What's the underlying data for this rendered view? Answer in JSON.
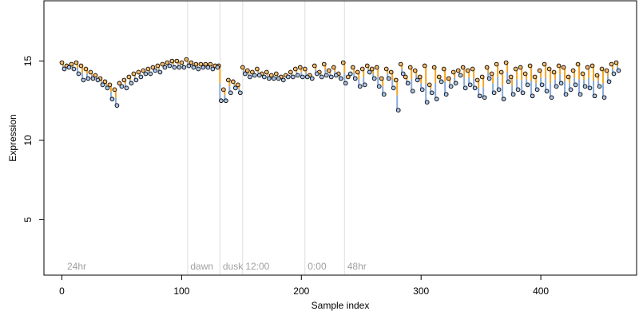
{
  "chart_data": {
    "type": "scatter",
    "title": "",
    "xlabel": "Sample index",
    "ylabel": "Expression",
    "xlim": [
      -15,
      480
    ],
    "ylim": [
      1.5,
      18.8
    ],
    "x_ticks": [
      0,
      100,
      200,
      300,
      400
    ],
    "y_ticks": [
      5,
      10,
      15
    ],
    "grid": false,
    "legend": "none",
    "colors": {
      "orange": "#f7b96a",
      "blue": "#a9c3e8",
      "point_edge": "#000000",
      "orange_line": "#f5a623",
      "blue_line": "#8aabdc",
      "gray_line": "#aaaaaa",
      "vline": "#dddddd",
      "annotation": "#a0a0a0"
    },
    "vlines": [
      105,
      132,
      151,
      203,
      236
    ],
    "annotations": [
      {
        "text": "24hr",
        "x": 3
      },
      {
        "text": "dawn",
        "x": 106
      },
      {
        "text": "dusk",
        "x": 133
      },
      {
        "text": "12:00",
        "x": 152
      },
      {
        "text": "0:00",
        "x": 204
      },
      {
        "text": "48hr",
        "x": 237
      }
    ],
    "series": [
      {
        "color": "orange",
        "points": [
          [
            0,
            14.9
          ],
          [
            4,
            14.7
          ],
          [
            8,
            14.8
          ],
          [
            12,
            14.9
          ],
          [
            16,
            14.7
          ],
          [
            20,
            14.5
          ],
          [
            24,
            14.3
          ],
          [
            28,
            14.1
          ],
          [
            32,
            13.9
          ],
          [
            36,
            13.7
          ],
          [
            40,
            13.5
          ],
          [
            44,
            13.2
          ],
          [
            48,
            13.6
          ],
          [
            52,
            13.8
          ],
          [
            56,
            14.0
          ],
          [
            60,
            14.2
          ],
          [
            64,
            14.3
          ],
          [
            68,
            14.4
          ],
          [
            72,
            14.5
          ],
          [
            76,
            14.6
          ],
          [
            80,
            14.7
          ],
          [
            84,
            14.8
          ],
          [
            88,
            14.9
          ],
          [
            92,
            15.0
          ],
          [
            96,
            15.0
          ],
          [
            100,
            14.9
          ],
          [
            104,
            15.1
          ],
          [
            108,
            14.9
          ],
          [
            112,
            14.8
          ],
          [
            116,
            14.8
          ],
          [
            120,
            14.8
          ],
          [
            124,
            14.8
          ],
          [
            128,
            14.7
          ],
          [
            131,
            14.7
          ],
          [
            135,
            13.2
          ],
          [
            139,
            13.8
          ],
          [
            143,
            13.7
          ],
          [
            147,
            13.5
          ],
          [
            151,
            14.6
          ],
          [
            155,
            14.4
          ],
          [
            159,
            14.3
          ],
          [
            163,
            14.5
          ],
          [
            167,
            14.2
          ],
          [
            171,
            14.3
          ],
          [
            175,
            14.1
          ],
          [
            179,
            14.2
          ],
          [
            183,
            14.0
          ],
          [
            187,
            14.1
          ],
          [
            191,
            14.3
          ],
          [
            195,
            14.5
          ],
          [
            199,
            14.6
          ],
          [
            203,
            14.5
          ],
          [
            207,
            14.1
          ],
          [
            211,
            14.7
          ],
          [
            215,
            14.3
          ],
          [
            219,
            14.8
          ],
          [
            223,
            14.4
          ],
          [
            227,
            14.6
          ],
          [
            231,
            14.2
          ],
          [
            235,
            14.9
          ],
          [
            239,
            14.0
          ],
          [
            243,
            14.6
          ],
          [
            247,
            14.3
          ],
          [
            251,
            14.5
          ],
          [
            255,
            14.7
          ],
          [
            259,
            14.5
          ],
          [
            263,
            14.6
          ],
          [
            267,
            13.9
          ],
          [
            271,
            14.5
          ],
          [
            275,
            14.3
          ],
          [
            279,
            13.8
          ],
          [
            283,
            14.8
          ],
          [
            287,
            14.0
          ],
          [
            291,
            14.6
          ],
          [
            295,
            14.4
          ],
          [
            299,
            14.0
          ],
          [
            303,
            14.7
          ],
          [
            307,
            13.5
          ],
          [
            311,
            14.6
          ],
          [
            315,
            14.0
          ],
          [
            319,
            14.5
          ],
          [
            323,
            13.9
          ],
          [
            327,
            14.3
          ],
          [
            331,
            14.4
          ],
          [
            335,
            14.6
          ],
          [
            339,
            14.4
          ],
          [
            343,
            14.5
          ],
          [
            347,
            13.8
          ],
          [
            351,
            14.0
          ],
          [
            355,
            14.6
          ],
          [
            359,
            14.2
          ],
          [
            363,
            14.8
          ],
          [
            367,
            14.3
          ],
          [
            371,
            14.9
          ],
          [
            375,
            14.0
          ],
          [
            379,
            14.5
          ],
          [
            383,
            14.6
          ],
          [
            387,
            14.2
          ],
          [
            391,
            14.7
          ],
          [
            395,
            14.0
          ],
          [
            399,
            14.4
          ],
          [
            403,
            14.8
          ],
          [
            407,
            14.5
          ],
          [
            411,
            14.3
          ],
          [
            415,
            14.7
          ],
          [
            419,
            14.6
          ],
          [
            423,
            14.0
          ],
          [
            427,
            14.4
          ],
          [
            431,
            14.8
          ],
          [
            435,
            14.2
          ],
          [
            439,
            14.6
          ],
          [
            443,
            14.7
          ],
          [
            447,
            14.1
          ],
          [
            451,
            14.5
          ],
          [
            455,
            14.4
          ],
          [
            459,
            14.8
          ],
          [
            463,
            14.9
          ]
        ]
      },
      {
        "color": "blue",
        "points": [
          [
            2,
            14.5
          ],
          [
            6,
            14.6
          ],
          [
            10,
            14.5
          ],
          [
            14,
            14.2
          ],
          [
            18,
            13.8
          ],
          [
            22,
            13.9
          ],
          [
            26,
            13.9
          ],
          [
            30,
            13.8
          ],
          [
            34,
            13.5
          ],
          [
            38,
            13.3
          ],
          [
            42,
            12.6
          ],
          [
            46,
            12.2
          ],
          [
            50,
            13.4
          ],
          [
            54,
            13.3
          ],
          [
            58,
            13.6
          ],
          [
            62,
            13.8
          ],
          [
            66,
            14.0
          ],
          [
            70,
            14.2
          ],
          [
            74,
            14.2
          ],
          [
            78,
            14.4
          ],
          [
            82,
            14.3
          ],
          [
            86,
            14.6
          ],
          [
            90,
            14.7
          ],
          [
            94,
            14.6
          ],
          [
            98,
            14.6
          ],
          [
            102,
            14.6
          ],
          [
            106,
            14.7
          ],
          [
            110,
            14.6
          ],
          [
            114,
            14.5
          ],
          [
            118,
            14.6
          ],
          [
            122,
            14.6
          ],
          [
            126,
            14.5
          ],
          [
            130,
            14.6
          ],
          [
            133,
            12.5
          ],
          [
            137,
            12.5
          ],
          [
            141,
            13.0
          ],
          [
            145,
            13.3
          ],
          [
            149,
            13.0
          ],
          [
            153,
            14.2
          ],
          [
            157,
            14.0
          ],
          [
            161,
            14.1
          ],
          [
            165,
            14.1
          ],
          [
            169,
            14.0
          ],
          [
            173,
            13.9
          ],
          [
            177,
            13.9
          ],
          [
            181,
            13.9
          ],
          [
            185,
            13.8
          ],
          [
            189,
            14.0
          ],
          [
            193,
            14.0
          ],
          [
            197,
            14.1
          ],
          [
            201,
            14.0
          ],
          [
            205,
            14.0
          ],
          [
            209,
            13.9
          ],
          [
            213,
            14.2
          ],
          [
            217,
            14.0
          ],
          [
            221,
            14.1
          ],
          [
            225,
            14.0
          ],
          [
            229,
            14.1
          ],
          [
            233,
            13.9
          ],
          [
            237,
            13.6
          ],
          [
            241,
            14.2
          ],
          [
            245,
            13.9
          ],
          [
            249,
            13.4
          ],
          [
            253,
            13.5
          ],
          [
            257,
            14.3
          ],
          [
            261,
            13.9
          ],
          [
            265,
            13.4
          ],
          [
            269,
            12.9
          ],
          [
            273,
            13.9
          ],
          [
            277,
            13.3
          ],
          [
            281,
            11.9
          ],
          [
            285,
            14.2
          ],
          [
            289,
            13.6
          ],
          [
            293,
            13.1
          ],
          [
            297,
            13.8
          ],
          [
            301,
            13.2
          ],
          [
            305,
            12.4
          ],
          [
            309,
            13.0
          ],
          [
            313,
            12.6
          ],
          [
            317,
            13.7
          ],
          [
            321,
            12.9
          ],
          [
            325,
            13.4
          ],
          [
            329,
            13.6
          ],
          [
            333,
            14.1
          ],
          [
            337,
            13.3
          ],
          [
            341,
            13.5
          ],
          [
            345,
            13.3
          ],
          [
            349,
            12.8
          ],
          [
            353,
            12.7
          ],
          [
            357,
            13.9
          ],
          [
            361,
            13.0
          ],
          [
            365,
            13.2
          ],
          [
            369,
            12.6
          ],
          [
            373,
            13.7
          ],
          [
            377,
            12.9
          ],
          [
            381,
            13.2
          ],
          [
            385,
            13.0
          ],
          [
            389,
            13.5
          ],
          [
            393,
            12.8
          ],
          [
            397,
            13.2
          ],
          [
            401,
            13.5
          ],
          [
            405,
            13.1
          ],
          [
            409,
            12.7
          ],
          [
            413,
            13.4
          ],
          [
            417,
            13.6
          ],
          [
            421,
            12.9
          ],
          [
            425,
            13.2
          ],
          [
            429,
            13.5
          ],
          [
            433,
            12.9
          ],
          [
            437,
            13.4
          ],
          [
            441,
            13.3
          ],
          [
            445,
            12.8
          ],
          [
            449,
            13.4
          ],
          [
            453,
            12.7
          ],
          [
            457,
            13.7
          ],
          [
            461,
            14.2
          ],
          [
            465,
            14.4
          ]
        ]
      }
    ]
  }
}
